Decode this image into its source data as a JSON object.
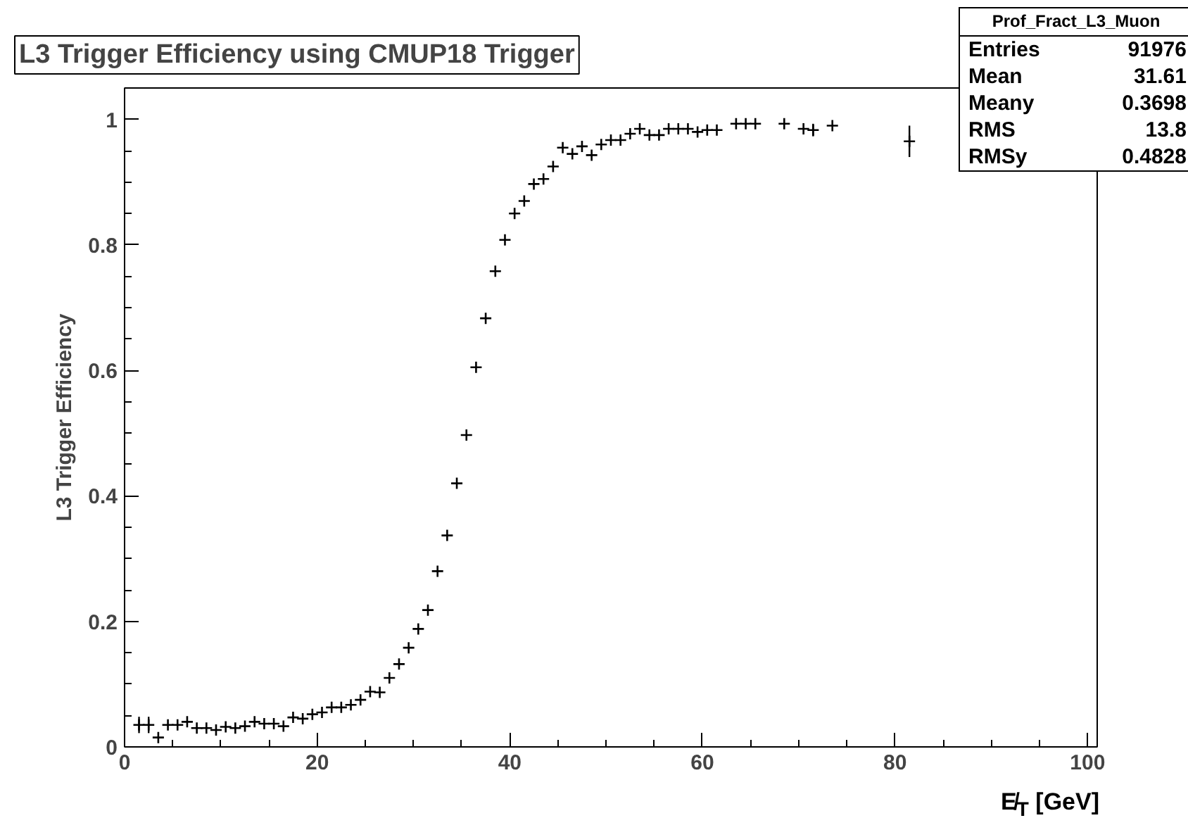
{
  "chart_data": {
    "type": "scatter",
    "title": "L3 Trigger Efficiency using CMUP18 Trigger",
    "xlabel": "E̸$_{T}$ [GeV]",
    "ylabel": "L3 Trigger Efficiency",
    "x": [
      1.5,
      2.5,
      3.5,
      4.5,
      5.5,
      6.5,
      7.5,
      8.5,
      9.5,
      10.5,
      11.5,
      12.5,
      13.5,
      14.5,
      15.5,
      16.5,
      17.5,
      18.5,
      19.5,
      20.5,
      21.5,
      22.5,
      23.5,
      24.5,
      25.5,
      26.5,
      27.5,
      28.5,
      29.5,
      30.5,
      31.5,
      32.5,
      33.5,
      34.5,
      35.5,
      36.5,
      37.5,
      38.5,
      39.5,
      40.5,
      41.5,
      42.5,
      43.5,
      44.5,
      45.5,
      46.5,
      47.5,
      48.5,
      49.5,
      50.5,
      51.5,
      52.5,
      53.5,
      54.5,
      55.5,
      56.5,
      57.5,
      58.5,
      59.5,
      60.5,
      61.5,
      63.5,
      64.5,
      65.5,
      68.5,
      70.5,
      71.5,
      73.5,
      81.5
    ],
    "series": [
      {
        "color": "#000000",
        "values": [
          0.035,
          0.035,
          0.015,
          0.035,
          0.035,
          0.04,
          0.03,
          0.03,
          0.027,
          0.032,
          0.03,
          0.033,
          0.04,
          0.037,
          0.037,
          0.033,
          0.047,
          0.045,
          0.052,
          0.055,
          0.063,
          0.063,
          0.067,
          0.075,
          0.088,
          0.087,
          0.11,
          0.132,
          0.158,
          0.188,
          0.218,
          0.28,
          0.337,
          0.42,
          0.497,
          0.605,
          0.683,
          0.758,
          0.808,
          0.85,
          0.87,
          0.897,
          0.905,
          0.925,
          0.955,
          0.945,
          0.957,
          0.943,
          0.96,
          0.967,
          0.967,
          0.977,
          0.985,
          0.975,
          0.975,
          0.985,
          0.985,
          0.985,
          0.98,
          0.983,
          0.983,
          0.993,
          0.993,
          0.993,
          0.993,
          0.985,
          0.983,
          0.99,
          0.965
        ],
        "errors": [
          0.013,
          0.013,
          null,
          null,
          null,
          null,
          null,
          null,
          null,
          null,
          null,
          null,
          null,
          null,
          null,
          null,
          null,
          null,
          null,
          null,
          null,
          null,
          null,
          null,
          null,
          null,
          null,
          null,
          null,
          null,
          null,
          null,
          null,
          null,
          null,
          null,
          null,
          null,
          null,
          null,
          null,
          null,
          null,
          null,
          null,
          null,
          null,
          null,
          null,
          null,
          null,
          null,
          null,
          null,
          null,
          null,
          null,
          null,
          null,
          null,
          null,
          null,
          null,
          null,
          null,
          null,
          0.01,
          null,
          0.025
        ]
      }
    ],
    "xlim": [
      0,
      101
    ],
    "ylim": [
      0,
      1.05
    ],
    "xticks": [
      0,
      20,
      40,
      60,
      80,
      100
    ],
    "yticks": [
      0,
      0.2,
      0.4,
      0.6,
      0.8,
      1
    ],
    "grid": false,
    "marker": "cross",
    "annotations": [
      "Prof_Fract_L3_Muon",
      "Entries 91976",
      "Mean 31.61",
      "Meany 0.3698",
      "RMS 13.8",
      "RMSy 0.4828"
    ]
  }
}
